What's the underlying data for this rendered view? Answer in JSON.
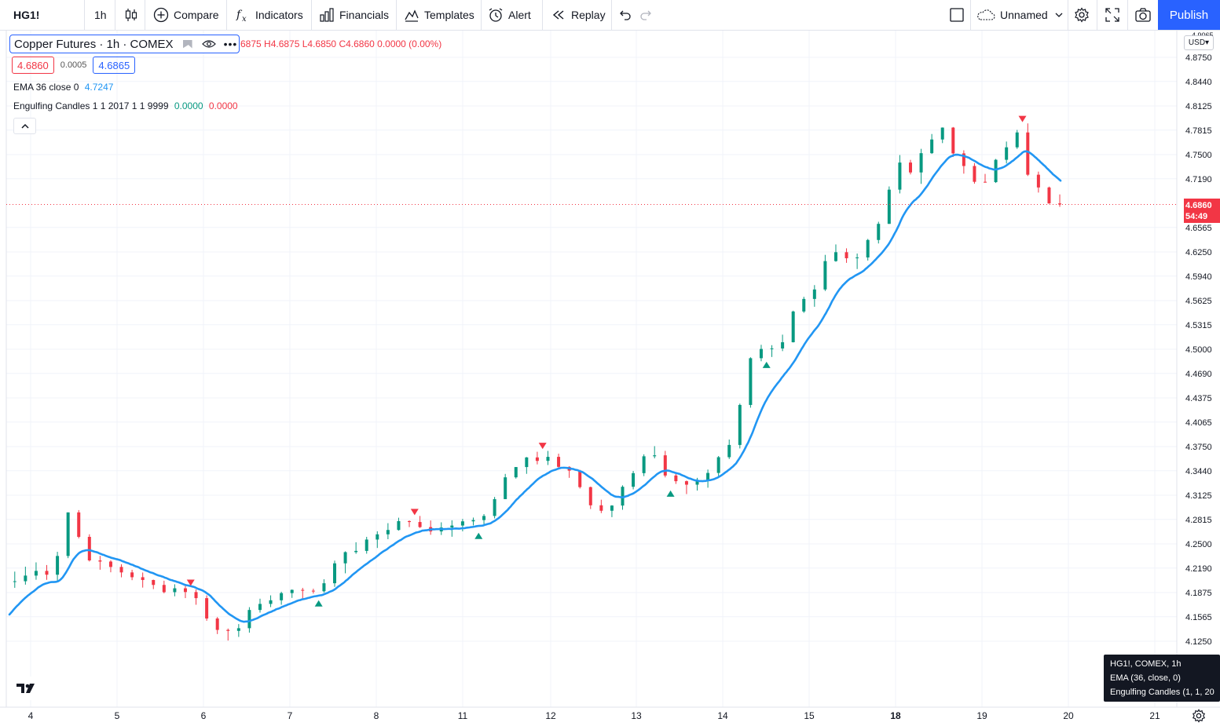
{
  "toolbar": {
    "symbol": "HG1!",
    "interval": "1h",
    "compare_label": "Compare",
    "indicators_label": "Indicators",
    "financials_label": "Financials",
    "templates_label": "Templates",
    "alert_label": "Alert",
    "replay_label": "Replay",
    "layout_name": "Unnamed",
    "publish_label": "Publish",
    "icons": [
      "candles-icon",
      "plus-circle-icon",
      "fx-icon",
      "bars-icon",
      "templates-icon",
      "alarm-icon",
      "replay-icon",
      "undo-icon",
      "redo-icon",
      "square-icon",
      "cloud-icon",
      "chevron-down-icon",
      "gear-icon",
      "fullscreen-icon",
      "camera-icon"
    ]
  },
  "legend": {
    "title": "Copper Futures · 1h · COMEX",
    "ohlc": "6875 H4.6875 L4.6850 C4.6860 0.0000 (0.00%)",
    "bid": "4.6860",
    "spread": "0.0005",
    "ask": "4.6865",
    "ema_label": "EMA 36 close 0",
    "ema_value": "4.7247",
    "engulfing_label": "Engulfing Candles 1 1 2017 1 1 9999",
    "engulfing_value1": "0.0000",
    "engulfing_value2": "0.0000"
  },
  "price_axis": {
    "currency": "USD",
    "top_label": "4.9065",
    "labels": [
      "4.8750",
      "4.8440",
      "4.8125",
      "4.7815",
      "4.7500",
      "4.7190",
      "4.6565",
      "4.6250",
      "4.5940",
      "4.5625",
      "4.5315",
      "4.5000",
      "4.4690",
      "4.4375",
      "4.4065",
      "4.3750",
      "4.3440",
      "4.3125",
      "4.2815",
      "4.2500",
      "4.2190",
      "4.1875",
      "4.1565",
      "4.1250"
    ],
    "last_price": "4.6860",
    "countdown": "54:49"
  },
  "time_axis": {
    "labels": [
      "4",
      "5",
      "6",
      "7",
      "8",
      "11",
      "12",
      "13",
      "14",
      "15",
      "18",
      "19",
      "20",
      "21"
    ]
  },
  "tooltip": {
    "line1": "HG1!, COMEX, 1h",
    "line2": "EMA (36, close, 0)",
    "line3": "Engulfing Candles (1, 1, 20"
  },
  "colors": {
    "up": "#089981",
    "down": "#f23645",
    "ema": "#2196f3",
    "accent": "#2962ff",
    "grid": "#f0f3fa"
  },
  "chart_data": {
    "type": "candlestick",
    "symbol": "HG1!",
    "title": "Copper Futures · 1h · COMEX",
    "ylim": [
      4.09,
      4.9065
    ],
    "grid": true,
    "keypoints_close": [
      [
        0,
        4.2
      ],
      [
        10,
        4.21
      ],
      [
        20,
        4.22
      ],
      [
        30,
        4.2
      ],
      [
        40,
        4.29
      ],
      [
        55,
        4.23
      ],
      [
        70,
        4.22
      ],
      [
        90,
        4.2
      ],
      [
        110,
        4.19
      ],
      [
        125,
        4.18
      ],
      [
        135,
        4.14
      ],
      [
        150,
        4.13
      ],
      [
        160,
        4.17
      ],
      [
        175,
        4.18
      ],
      [
        190,
        4.19
      ],
      [
        205,
        4.19
      ],
      [
        220,
        4.23
      ],
      [
        235,
        4.25
      ],
      [
        250,
        4.27
      ],
      [
        265,
        4.28
      ],
      [
        280,
        4.27
      ],
      [
        295,
        4.27
      ],
      [
        310,
        4.28
      ],
      [
        320,
        4.3
      ],
      [
        330,
        4.34
      ],
      [
        345,
        4.36
      ],
      [
        360,
        4.36
      ],
      [
        375,
        4.33
      ],
      [
        385,
        4.3
      ],
      [
        395,
        4.29
      ],
      [
        405,
        4.32
      ],
      [
        415,
        4.35
      ],
      [
        425,
        4.37
      ],
      [
        435,
        4.33
      ],
      [
        445,
        4.32
      ],
      [
        455,
        4.33
      ],
      [
        465,
        4.35
      ],
      [
        475,
        4.38
      ],
      [
        485,
        4.45
      ],
      [
        490,
        4.5
      ],
      [
        500,
        4.5
      ],
      [
        510,
        4.51
      ],
      [
        520,
        4.56
      ],
      [
        530,
        4.57
      ],
      [
        540,
        4.63
      ],
      [
        555,
        4.61
      ],
      [
        565,
        4.64
      ],
      [
        575,
        4.67
      ],
      [
        585,
        4.74
      ],
      [
        595,
        4.72
      ],
      [
        605,
        4.77
      ],
      [
        615,
        4.78
      ],
      [
        625,
        4.74
      ],
      [
        635,
        4.72
      ],
      [
        645,
        4.72
      ],
      [
        655,
        4.76
      ],
      [
        665,
        4.78
      ],
      [
        672,
        4.72
      ],
      [
        680,
        4.7
      ],
      [
        690,
        4.686
      ]
    ]
  }
}
